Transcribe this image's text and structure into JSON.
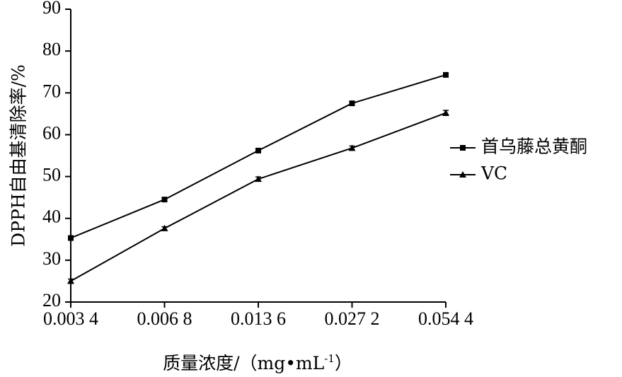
{
  "chart_data": {
    "type": "line",
    "title": "",
    "xlabel": "质量浓度/（mg•mL",
    "xlabel_sup": "-1",
    "xlabel_close": "）",
    "ylabel": "DPPH自由基清除率/%",
    "categories": [
      "0.003 4",
      "0.006 8",
      "0.013 6",
      "0.027 2",
      "0.054 4"
    ],
    "ylim": [
      20,
      90
    ],
    "yticks": [
      "20",
      "30",
      "40",
      "50",
      "60",
      "70",
      "80",
      "90"
    ],
    "grid": false,
    "legend_position": "right",
    "series": [
      {
        "name": "首乌藤总黄酮",
        "marker": "square",
        "values": [
          35.3,
          44.5,
          56.2,
          67.5,
          74.3
        ],
        "errors": [
          0.4,
          0.5,
          0.5,
          0.5,
          0.5
        ]
      },
      {
        "name": "VC",
        "marker": "triangle",
        "values": [
          25.0,
          37.6,
          49.4,
          56.8,
          65.2
        ],
        "errors": [
          0.5,
          0.4,
          0.5,
          0.5,
          0.6
        ]
      }
    ]
  }
}
